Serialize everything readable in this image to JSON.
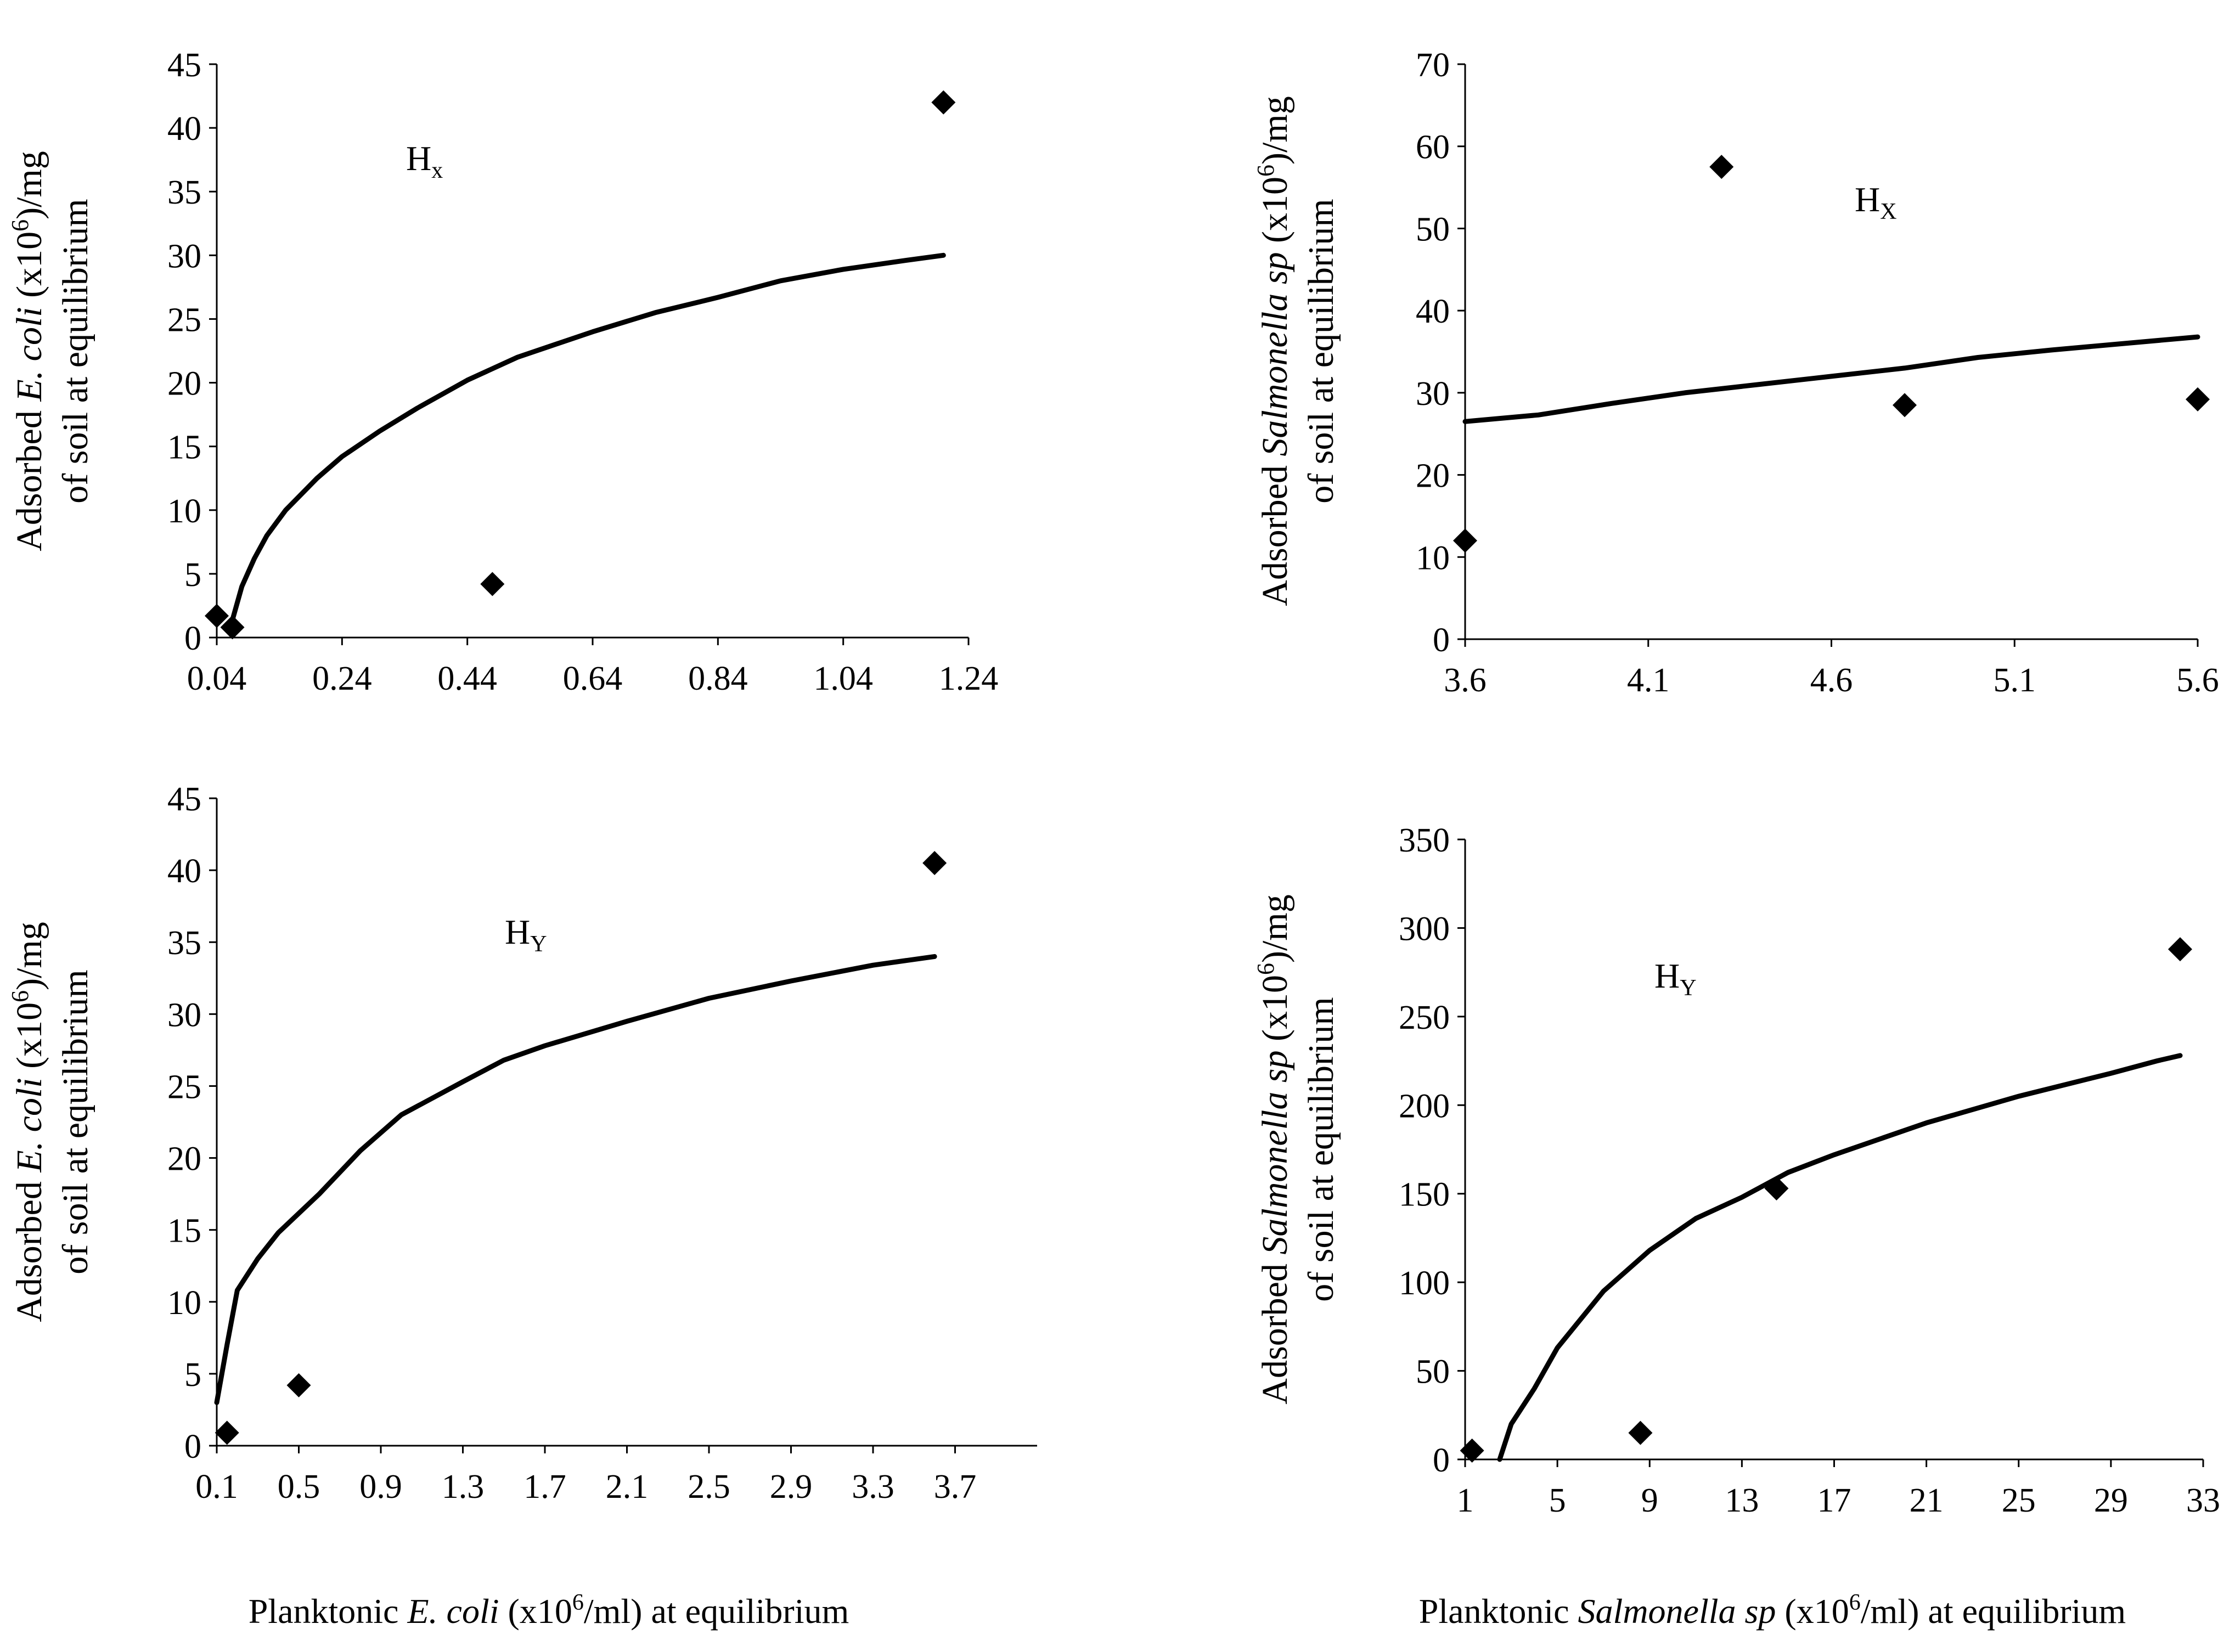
{
  "x_titles": {
    "left": {
      "pre": "Planktonic ",
      "organism": "E. coli",
      "post_a": " (x10",
      "sup": "6",
      "post_b": "/ml) at  equilibrium"
    },
    "right": {
      "pre": "Planktonic ",
      "organism": "Salmonella sp",
      "post_a": " (x10",
      "sup": "6",
      "post_b": "/ml) at equilibrium"
    }
  },
  "chart_data": [
    {
      "type": "scatter",
      "id": "ecoli-hx",
      "panel_label": {
        "base": "H",
        "sub": "x"
      },
      "ylabel": {
        "line1_pre": "Adsorbed ",
        "line1_organism": "E. coli",
        "line1_post": " (x10",
        "sup": "6",
        "line1_end": ")/mg",
        "line2": "of soil at equilibrium"
      },
      "xlim": [
        0.04,
        1.24
      ],
      "ylim": [
        0,
        45
      ],
      "xticks": [
        "0.04",
        "0.24",
        "0.44",
        "0.64",
        "0.84",
        "1.04",
        "1.24"
      ],
      "yticks": [
        "0",
        "5",
        "10",
        "15",
        "20",
        "25",
        "30",
        "35",
        "40",
        "45"
      ],
      "points": [
        {
          "x": 0.04,
          "y": 1.7
        },
        {
          "x": 0.065,
          "y": 0.8
        },
        {
          "x": 0.48,
          "y": 4.2
        },
        {
          "x": 1.2,
          "y": 42
        }
      ],
      "fit_curve": [
        {
          "x": 0.06,
          "y": 0.5
        },
        {
          "x": 0.08,
          "y": 4
        },
        {
          "x": 0.1,
          "y": 6.2
        },
        {
          "x": 0.12,
          "y": 8
        },
        {
          "x": 0.15,
          "y": 10
        },
        {
          "x": 0.2,
          "y": 12.5
        },
        {
          "x": 0.24,
          "y": 14.2
        },
        {
          "x": 0.3,
          "y": 16.2
        },
        {
          "x": 0.36,
          "y": 18
        },
        {
          "x": 0.44,
          "y": 20.2
        },
        {
          "x": 0.52,
          "y": 22
        },
        {
          "x": 0.64,
          "y": 24
        },
        {
          "x": 0.74,
          "y": 25.5
        },
        {
          "x": 0.84,
          "y": 26.7
        },
        {
          "x": 0.94,
          "y": 28
        },
        {
          "x": 1.04,
          "y": 28.9
        },
        {
          "x": 1.14,
          "y": 29.6
        },
        {
          "x": 1.2,
          "y": 30
        }
      ]
    },
    {
      "type": "scatter",
      "id": "salmonella-hx",
      "panel_label": {
        "base": "H",
        "sub": "X"
      },
      "ylabel": {
        "line1_pre": "Adsorbed ",
        "line1_organism": "Salmonella sp",
        "line1_post": " (x10",
        "sup": "6",
        "line1_end": ")/mg",
        "line2": "of soil at equilibrium"
      },
      "xlim": [
        3.6,
        5.6
      ],
      "ylim": [
        0,
        70
      ],
      "xticks": [
        "3.6",
        "4.1",
        "4.6",
        "5.1",
        "5.6"
      ],
      "yticks": [
        "0",
        "10",
        "20",
        "30",
        "40",
        "50",
        "60",
        "70"
      ],
      "points": [
        {
          "x": 3.6,
          "y": 12
        },
        {
          "x": 4.3,
          "y": 57.5
        },
        {
          "x": 4.8,
          "y": 28.5
        },
        {
          "x": 5.6,
          "y": 29.2
        }
      ],
      "fit_curve": [
        {
          "x": 3.6,
          "y": 26.5
        },
        {
          "x": 3.8,
          "y": 27.3
        },
        {
          "x": 4.0,
          "y": 28.7
        },
        {
          "x": 4.2,
          "y": 30
        },
        {
          "x": 4.4,
          "y": 31
        },
        {
          "x": 4.6,
          "y": 32
        },
        {
          "x": 4.8,
          "y": 33
        },
        {
          "x": 5.0,
          "y": 34.3
        },
        {
          "x": 5.2,
          "y": 35.2
        },
        {
          "x": 5.4,
          "y": 36
        },
        {
          "x": 5.6,
          "y": 36.8
        }
      ]
    },
    {
      "type": "scatter",
      "id": "ecoli-hy",
      "panel_label": {
        "base": "H",
        "sub": "Y"
      },
      "ylabel": {
        "line1_pre": "Adsorbed ",
        "line1_organism": "E. coli",
        "line1_post": " (x10",
        "sup": "6",
        "line1_end": ")/mg",
        "line2": "of soil at equilibrium"
      },
      "xlim": [
        0.1,
        4.1
      ],
      "ylim": [
        0,
        45
      ],
      "xticks": [
        "0.1",
        "0.5",
        "0.9",
        "1.3",
        "1.7",
        "2.1",
        "2.5",
        "2.9",
        "3.3",
        "3.7"
      ],
      "yticks": [
        "0",
        "5",
        "10",
        "15",
        "20",
        "25",
        "30",
        "35",
        "40",
        "45"
      ],
      "points": [
        {
          "x": 0.15,
          "y": 0.9
        },
        {
          "x": 0.5,
          "y": 4.2
        },
        {
          "x": 3.6,
          "y": 40.5
        }
      ],
      "fit_curve": [
        {
          "x": 0.1,
          "y": 3
        },
        {
          "x": 0.15,
          "y": 7
        },
        {
          "x": 0.2,
          "y": 10.8
        },
        {
          "x": 0.3,
          "y": 13
        },
        {
          "x": 0.4,
          "y": 14.8
        },
        {
          "x": 0.6,
          "y": 17.5
        },
        {
          "x": 0.8,
          "y": 20.5
        },
        {
          "x": 1.0,
          "y": 23
        },
        {
          "x": 1.3,
          "y": 25.3
        },
        {
          "x": 1.5,
          "y": 26.8
        },
        {
          "x": 1.7,
          "y": 27.8
        },
        {
          "x": 2.1,
          "y": 29.5
        },
        {
          "x": 2.5,
          "y": 31.1
        },
        {
          "x": 2.9,
          "y": 32.3
        },
        {
          "x": 3.3,
          "y": 33.4
        },
        {
          "x": 3.6,
          "y": 34
        }
      ]
    },
    {
      "type": "scatter",
      "id": "salmonella-hy",
      "panel_label": {
        "base": "H",
        "sub": "Y"
      },
      "ylabel": {
        "line1_pre": "Adsorbed ",
        "line1_organism": "Salmonella sp",
        "line1_post": " (x10",
        "sup": "6",
        "line1_end": ")/mg",
        "line2": "of soil at equilibrium"
      },
      "xlim": [
        1,
        33
      ],
      "ylim": [
        0,
        350
      ],
      "xticks": [
        "1",
        "5",
        "9",
        "13",
        "17",
        "21",
        "25",
        "29",
        "33"
      ],
      "yticks": [
        "0",
        "50",
        "100",
        "150",
        "200",
        "250",
        "300",
        "350"
      ],
      "points": [
        {
          "x": 1.3,
          "y": 5
        },
        {
          "x": 8.6,
          "y": 15
        },
        {
          "x": 14.5,
          "y": 153
        },
        {
          "x": 32,
          "y": 288
        }
      ],
      "fit_curve": [
        {
          "x": 2.5,
          "y": 0
        },
        {
          "x": 3,
          "y": 20
        },
        {
          "x": 4,
          "y": 40
        },
        {
          "x": 5,
          "y": 63
        },
        {
          "x": 7,
          "y": 95
        },
        {
          "x": 9,
          "y": 118
        },
        {
          "x": 11,
          "y": 136
        },
        {
          "x": 13,
          "y": 148
        },
        {
          "x": 15,
          "y": 162
        },
        {
          "x": 17,
          "y": 172
        },
        {
          "x": 21,
          "y": 190
        },
        {
          "x": 25,
          "y": 205
        },
        {
          "x": 29,
          "y": 218
        },
        {
          "x": 31,
          "y": 225
        },
        {
          "x": 32,
          "y": 228
        }
      ]
    }
  ]
}
